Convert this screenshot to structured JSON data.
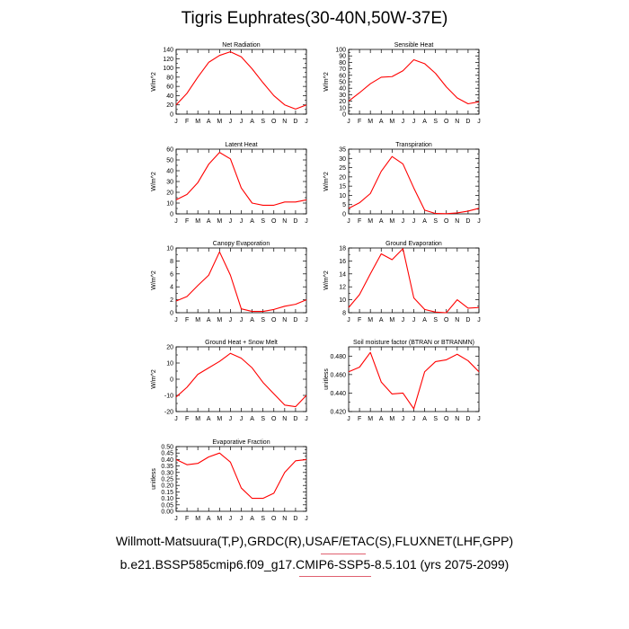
{
  "figure": {
    "title": "Tigris Euphrates(30-40N,50W-37E)",
    "footer_line_1": "Willmott-Matsuura(T,P),GRDC(R),USAF/ETAC(S),FLUXNET(LHF,GPP)",
    "footer_line_2": "b.e21.BSSP585cmip6.f09_g17.CMIP6-SSP5-8.5.101 (yrs 2075-2099)",
    "line_color": "#ff0000"
  },
  "chart_data": [
    {
      "type": "line",
      "title": "Net Radiation",
      "ylabel": "W/m^2",
      "categories": [
        "J",
        "F",
        "M",
        "A",
        "M",
        "J",
        "J",
        "A",
        "S",
        "O",
        "N",
        "D",
        "J"
      ],
      "values": [
        20,
        45,
        80,
        112,
        127,
        135,
        124,
        98,
        68,
        40,
        20,
        11,
        20
      ],
      "ylim": [
        0,
        140
      ],
      "yticks": [
        "0",
        "20",
        "40",
        "60",
        "80",
        "100",
        "120",
        "140"
      ],
      "ytick_values": [
        0,
        20,
        40,
        60,
        80,
        100,
        120,
        140
      ]
    },
    {
      "type": "line",
      "title": "Sensible Heat",
      "ylabel": "W/m^2",
      "categories": [
        "J",
        "F",
        "M",
        "A",
        "M",
        "J",
        "J",
        "A",
        "S",
        "O",
        "N",
        "D",
        "J"
      ],
      "values": [
        20,
        33,
        47,
        57,
        58,
        67,
        84,
        78,
        63,
        42,
        25,
        16,
        19
      ],
      "ylim": [
        0,
        100
      ],
      "yticks": [
        "0",
        "10",
        "20",
        "30",
        "40",
        "50",
        "60",
        "70",
        "80",
        "90",
        "100"
      ],
      "ytick_values": [
        0,
        10,
        20,
        30,
        40,
        50,
        60,
        70,
        80,
        90,
        100
      ]
    },
    {
      "type": "line",
      "title": "Latent Heat",
      "ylabel": "W/m^2",
      "categories": [
        "J",
        "F",
        "M",
        "A",
        "M",
        "J",
        "J",
        "A",
        "S",
        "O",
        "N",
        "D",
        "J"
      ],
      "values": [
        13,
        18,
        29,
        46,
        57,
        51,
        24,
        10,
        8,
        8,
        11,
        11,
        13
      ],
      "ylim": [
        0,
        60
      ],
      "yticks": [
        "0",
        "10",
        "20",
        "30",
        "40",
        "50",
        "60"
      ],
      "ytick_values": [
        0,
        10,
        20,
        30,
        40,
        50,
        60
      ]
    },
    {
      "type": "line",
      "title": "Transpiration",
      "ylabel": "W/m^2",
      "categories": [
        "J",
        "F",
        "M",
        "A",
        "M",
        "J",
        "J",
        "A",
        "S",
        "O",
        "N",
        "D",
        "J"
      ],
      "values": [
        3,
        6,
        11,
        23,
        31,
        27,
        14,
        2,
        0.2,
        0.1,
        0.5,
        1.5,
        3
      ],
      "ylim": [
        0,
        35
      ],
      "yticks": [
        "0",
        "5",
        "10",
        "15",
        "20",
        "25",
        "30",
        "35"
      ],
      "ytick_values": [
        0,
        5,
        10,
        15,
        20,
        25,
        30,
        35
      ]
    },
    {
      "type": "line",
      "title": "Canopy Evaporation",
      "ylabel": "W/m^2",
      "categories": [
        "J",
        "F",
        "M",
        "A",
        "M",
        "J",
        "J",
        "A",
        "S",
        "O",
        "N",
        "D",
        "J"
      ],
      "values": [
        1.8,
        2.5,
        4.2,
        5.8,
        9.4,
        5.8,
        0.6,
        0.2,
        0.2,
        0.5,
        1.0,
        1.3,
        2.0
      ],
      "ylim": [
        0,
        10
      ],
      "yticks": [
        "0",
        "2",
        "4",
        "6",
        "8",
        "10"
      ],
      "ytick_values": [
        0,
        2,
        4,
        6,
        8,
        10
      ]
    },
    {
      "type": "line",
      "title": "Ground Evaporation",
      "ylabel": "W/m^2",
      "categories": [
        "J",
        "F",
        "M",
        "A",
        "M",
        "J",
        "J",
        "A",
        "S",
        "O",
        "N",
        "D",
        "J"
      ],
      "values": [
        8.8,
        10.8,
        14.0,
        17.1,
        16.2,
        17.9,
        10.3,
        8.5,
        8.1,
        8.0,
        10.0,
        8.7,
        8.8
      ],
      "ylim": [
        8,
        18
      ],
      "yticks": [
        "8",
        "10",
        "12",
        "14",
        "16",
        "18"
      ],
      "ytick_values": [
        8,
        10,
        12,
        14,
        16,
        18
      ]
    },
    {
      "type": "line",
      "title": "Ground Heat + Snow Melt",
      "ylabel": "W/m^2",
      "categories": [
        "J",
        "F",
        "M",
        "A",
        "M",
        "J",
        "J",
        "A",
        "S",
        "O",
        "N",
        "D",
        "J"
      ],
      "values": [
        -11,
        -5,
        3,
        7,
        11,
        16,
        13,
        7,
        -2,
        -9,
        -16,
        -17,
        -10
      ],
      "ylim": [
        -20,
        20
      ],
      "yticks": [
        "-20",
        "-10",
        "0",
        "10",
        "20"
      ],
      "ytick_values": [
        -20,
        -10,
        0,
        10,
        20
      ]
    },
    {
      "type": "line",
      "title": "Soil moisture factor (BTRAN or BTRANMN)",
      "ylabel": "unitless",
      "categories": [
        "J",
        "F",
        "M",
        "A",
        "M",
        "J",
        "J",
        "A",
        "S",
        "O",
        "N",
        "D",
        "J"
      ],
      "values": [
        0.463,
        0.468,
        0.484,
        0.452,
        0.439,
        0.44,
        0.423,
        0.463,
        0.474,
        0.476,
        0.482,
        0.475,
        0.463
      ],
      "ylim": [
        0.42,
        0.49
      ],
      "yticks": [
        "0.420",
        "0.440",
        "0.460",
        "0.480"
      ],
      "ytick_values": [
        0.42,
        0.44,
        0.46,
        0.48
      ]
    },
    {
      "type": "line",
      "title": "Evaporative Fraction",
      "ylabel": "unitless",
      "categories": [
        "J",
        "F",
        "M",
        "A",
        "M",
        "J",
        "J",
        "A",
        "S",
        "O",
        "N",
        "D",
        "J"
      ],
      "values": [
        0.4,
        0.36,
        0.37,
        0.42,
        0.45,
        0.38,
        0.18,
        0.1,
        0.1,
        0.14,
        0.3,
        0.39,
        0.4
      ],
      "ylim": [
        0,
        0.5
      ],
      "yticks": [
        "0.00",
        "0.05",
        "0.10",
        "0.15",
        "0.20",
        "0.25",
        "0.30",
        "0.35",
        "0.40",
        "0.45",
        "0.50"
      ],
      "ytick_values": [
        0,
        0.05,
        0.1,
        0.15,
        0.2,
        0.25,
        0.3,
        0.35,
        0.4,
        0.45,
        0.5
      ]
    }
  ]
}
